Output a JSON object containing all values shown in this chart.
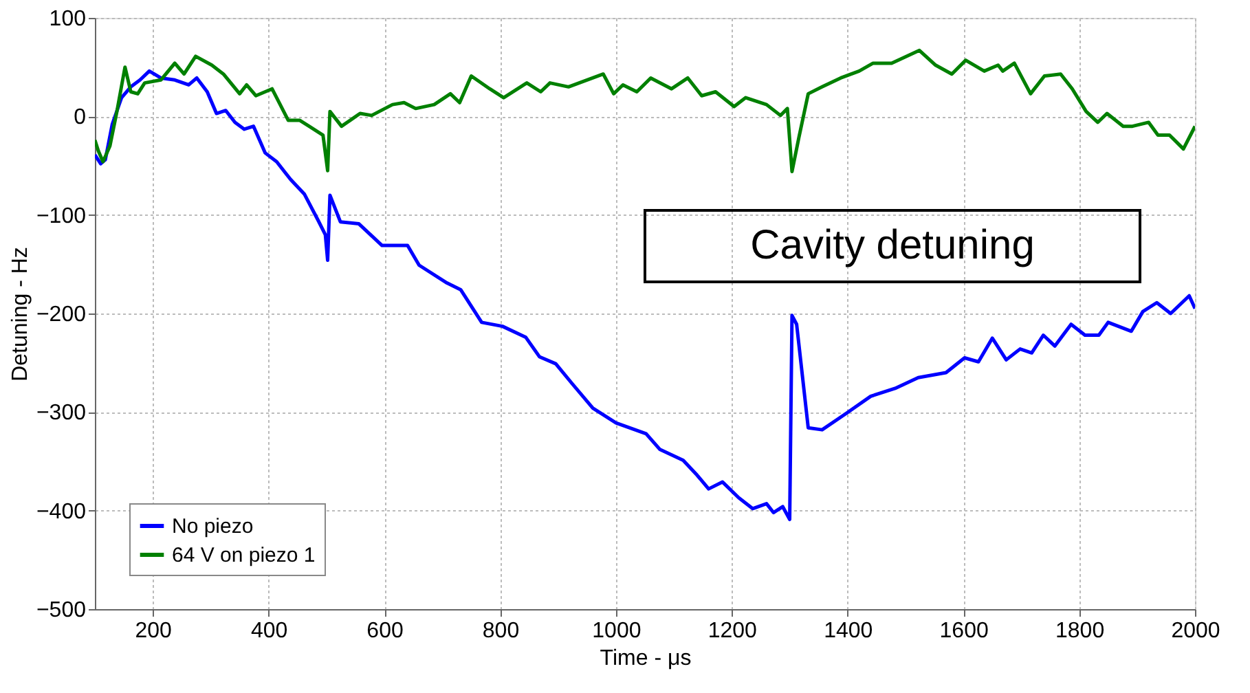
{
  "chart_data": {
    "type": "line",
    "xlabel": "Time - μs",
    "ylabel": "Detuning - Hz",
    "xlim": [
      100,
      2000
    ],
    "xticks": [
      200,
      400,
      600,
      800,
      1000,
      1200,
      1400,
      1600,
      1800,
      2000
    ],
    "ylim": [
      -500,
      100
    ],
    "yticks": [
      -500,
      -400,
      -300,
      -200,
      -100,
      0,
      100
    ],
    "grid": true,
    "legend": "bottom left",
    "line_style": "solid",
    "marker": "none",
    "annotations": [
      "Cavity detuning"
    ],
    "series": [
      {
        "name": "No piezo",
        "color": "#0000ff",
        "x": [
          100,
          110,
          118,
          130,
          146,
          162,
          178,
          194,
          214,
          238,
          262,
          276,
          294,
          310,
          326,
          342,
          358,
          374,
          394,
          414,
          438,
          462,
          486,
          498,
          502,
          506,
          524,
          556,
          596,
          640,
          660,
          708,
          732,
          768,
          804,
          844,
          868,
          896,
          924,
          960,
          1000,
          1052,
          1076,
          1116,
          1140,
          1160,
          1184,
          1212,
          1236,
          1260,
          1272,
          1288,
          1300,
          1304,
          1312,
          1332,
          1356,
          1396,
          1440,
          1482,
          1522,
          1570,
          1602,
          1626,
          1650,
          1674,
          1698,
          1718,
          1738,
          1758,
          1786,
          1810,
          1834,
          1850,
          1890,
          1910,
          1934,
          1958,
          1990,
          2000
        ],
        "values": [
          -39,
          -48,
          -44,
          -8,
          19,
          30,
          37,
          46,
          39,
          37,
          32,
          39,
          25,
          3,
          6,
          -6,
          -13,
          -10,
          -37,
          -46,
          -64,
          -79,
          -106,
          -120,
          -146,
          -80,
          -107,
          -109,
          -131,
          -131,
          -151,
          -169,
          -176,
          -209,
          -213,
          -224,
          -244,
          -251,
          -271,
          -296,
          -311,
          -322,
          -338,
          -349,
          -364,
          -378,
          -371,
          -387,
          -398,
          -393,
          -402,
          -396,
          -409,
          -202,
          -211,
          -316,
          -318,
          -302,
          -284,
          -276,
          -265,
          -260,
          -245,
          -249,
          -225,
          -247,
          -236,
          -240,
          -222,
          -233,
          -211,
          -222,
          -222,
          -209,
          -218,
          -198,
          -189,
          -200,
          -182,
          -195
        ]
      },
      {
        "name": "64 V on piezo 1",
        "color": "#008000",
        "x": [
          100,
          106,
          114,
          126,
          138,
          152,
          162,
          174,
          186,
          214,
          238,
          254,
          274,
          302,
          322,
          350,
          362,
          378,
          406,
          434,
          454,
          470,
          494,
          502,
          506,
          526,
          558,
          578,
          614,
          634,
          654,
          686,
          714,
          730,
          750,
          782,
          806,
          846,
          870,
          886,
          918,
          950,
          978,
          996,
          1012,
          1036,
          1060,
          1096,
          1124,
          1148,
          1172,
          1204,
          1224,
          1260,
          1284,
          1296,
          1304,
          1316,
          1332,
          1356,
          1388,
          1420,
          1444,
          1476,
          1524,
          1552,
          1580,
          1604,
          1636,
          1660,
          1668,
          1688,
          1716,
          1740,
          1768,
          1788,
          1812,
          1832,
          1848,
          1876,
          1892,
          1920,
          1936,
          1956,
          1980,
          2000
        ],
        "values": [
          -24,
          -35,
          -46,
          -30,
          5,
          50,
          25,
          23,
          34,
          37,
          54,
          43,
          61,
          52,
          43,
          23,
          32,
          21,
          28,
          -4,
          -4,
          -10,
          -19,
          -55,
          5,
          -10,
          3,
          1,
          12,
          14,
          8,
          12,
          23,
          14,
          41,
          28,
          19,
          34,
          25,
          34,
          30,
          37,
          43,
          23,
          32,
          25,
          39,
          28,
          39,
          21,
          25,
          10,
          19,
          12,
          1,
          8,
          -56,
          -21,
          23,
          30,
          39,
          46,
          54,
          54,
          67,
          52,
          43,
          57,
          46,
          52,
          46,
          54,
          23,
          41,
          43,
          28,
          5,
          -6,
          3,
          -10,
          -10,
          -6,
          -19,
          -19,
          -33,
          -10
        ]
      }
    ]
  }
}
